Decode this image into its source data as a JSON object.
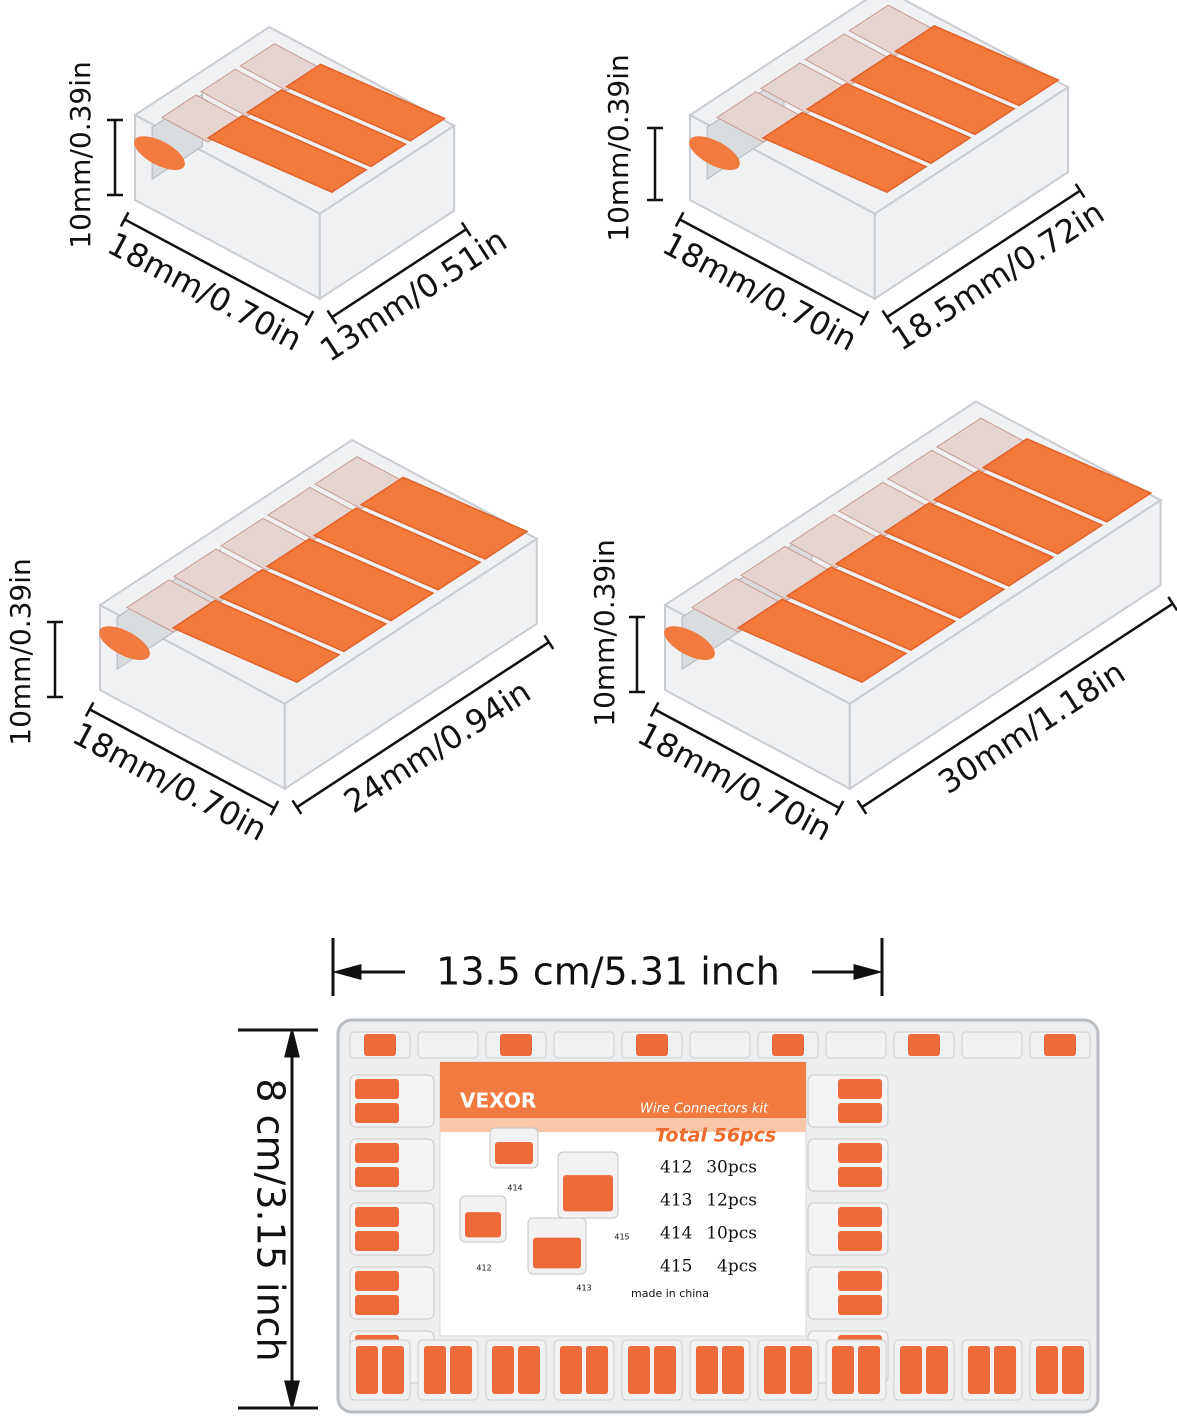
{
  "connectors": [
    {
      "height": "10mm/0.39in",
      "depth": "18mm/0.70in",
      "width": "13mm/0.51in"
    },
    {
      "height": "10mm/0.39in",
      "depth": "18mm/0.70in",
      "width": "18.5mm/0.72in"
    },
    {
      "height": "10mm/0.39in",
      "depth": "18mm/0.70in",
      "width": "24mm/0.94in"
    },
    {
      "height": "10mm/0.39in",
      "depth": "18mm/0.70in",
      "width": "30mm/1.18in"
    }
  ],
  "box": {
    "width": "13.5 cm/5.31 inch",
    "height": "8 cm/3.15 inch",
    "label": {
      "brand": "VEXOR",
      "subtitle": "Wire Connectors kit",
      "total": "Total 56pcs",
      "items": [
        {
          "model": "412",
          "qty": "30pcs"
        },
        {
          "model": "413",
          "qty": "12pcs"
        },
        {
          "model": "414",
          "qty": "10pcs"
        },
        {
          "model": "415",
          "qty": "4pcs"
        }
      ],
      "footer": "made in china",
      "image_labels": [
        "414",
        "415",
        "412",
        "413"
      ]
    }
  }
}
